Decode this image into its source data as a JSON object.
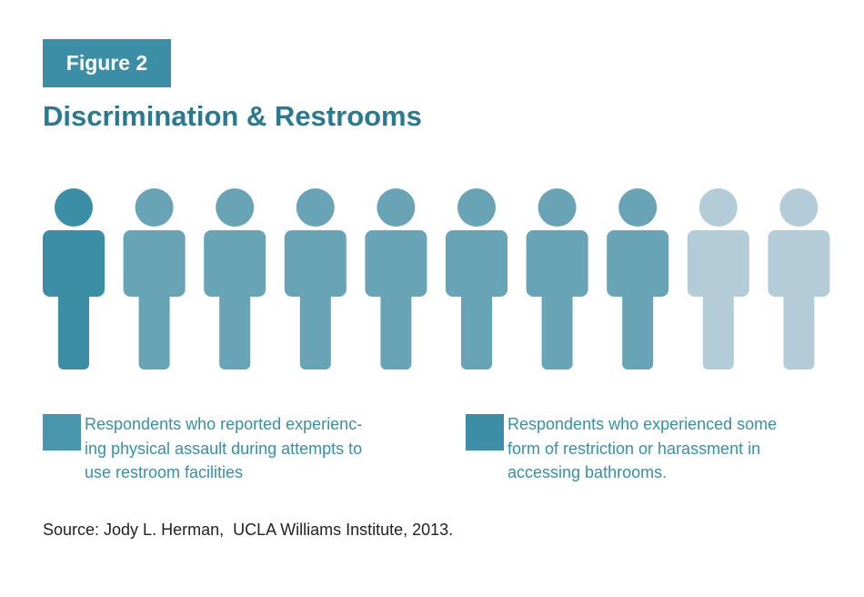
{
  "figure_label": "Figure 2",
  "title": "Discrimination & Restrooms",
  "colors": {
    "primary": "#3b8ea6",
    "medium": "#68a3b6",
    "light": "#b3ccd7",
    "title": "#2a7891",
    "legend_text": "#3690a8"
  },
  "chart_data": {
    "type": "pictograph",
    "total_figures": 10,
    "highlight_counts": [
      1,
      7
    ],
    "series": [
      {
        "label": "Respondents who reported experienc-\ning physical assault during attempts to\nuse restroom facilities",
        "count": 1,
        "color": "#3b8ea6"
      },
      {
        "label": "Respondents who experienced some\nform of restriction or harassment in\naccessing bathrooms.",
        "count": 7,
        "color": "#68a3b6"
      }
    ],
    "remaining_color": "#b3ccd7"
  },
  "legend": {
    "left_swatch_color": "#4896ad",
    "right_swatch_color": "#3b8ea6"
  },
  "source": "Source: Jody L. Herman,  UCLA Williams Institute, 2013."
}
